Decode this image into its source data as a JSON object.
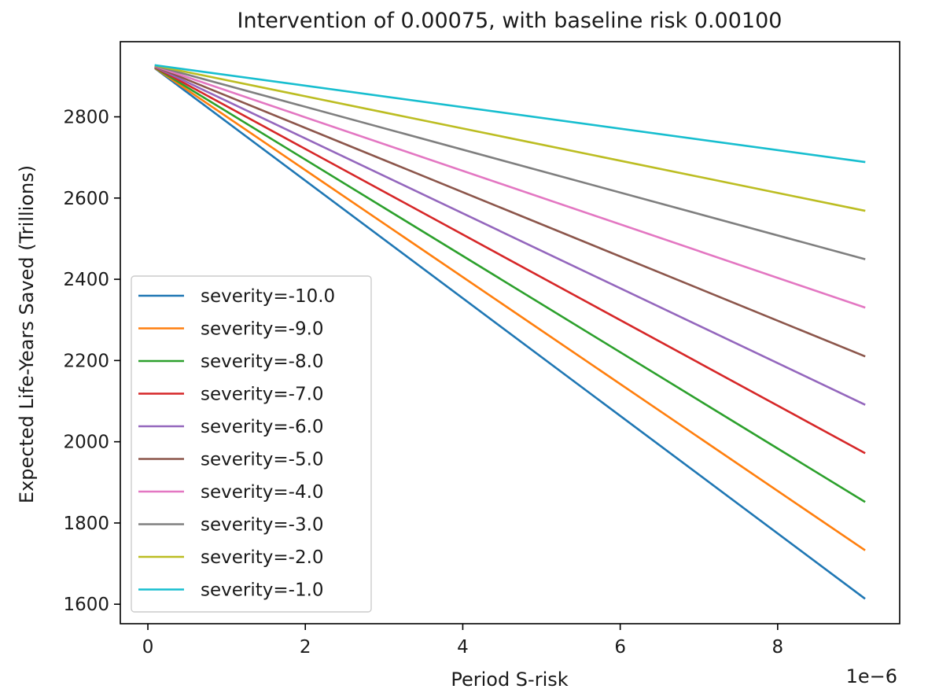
{
  "chart_data": {
    "type": "line",
    "title": "Intervention of 0.00075, with baseline risk 0.00100",
    "xlabel": "Period S-risk",
    "ylabel": "Expected Life-Years Saved (Trillions)",
    "x_offset_label": "1e−6",
    "xlim": [
      -3.5e-07,
      9.55e-06
    ],
    "ylim": [
      1552,
      2985
    ],
    "x_ticks": [
      0,
      2e-06,
      4e-06,
      6e-06,
      8e-06
    ],
    "x_tick_labels": [
      "0",
      "2",
      "4",
      "6",
      "8"
    ],
    "y_ticks": [
      1600,
      1800,
      2000,
      2200,
      2400,
      2600,
      2800
    ],
    "y_tick_labels": [
      "1600",
      "1800",
      "2000",
      "2200",
      "2400",
      "2600",
      "2800"
    ],
    "grid": false,
    "legend_position": "lower-left",
    "x": [
      1e-07,
      9.1e-06
    ],
    "series": [
      {
        "name": "severity=-10.0",
        "color": "#1f77b4",
        "values": [
          2918,
          1615
        ]
      },
      {
        "name": "severity=-9.0",
        "color": "#ff7f0e",
        "values": [
          2919,
          1734
        ]
      },
      {
        "name": "severity=-8.0",
        "color": "#2ca02c",
        "values": [
          2920,
          1853
        ]
      },
      {
        "name": "severity=-7.0",
        "color": "#d62728",
        "values": [
          2921,
          1973
        ]
      },
      {
        "name": "severity=-6.0",
        "color": "#9467bd",
        "values": [
          2922,
          2092
        ]
      },
      {
        "name": "severity=-5.0",
        "color": "#8c564b",
        "values": [
          2923,
          2211
        ]
      },
      {
        "name": "severity=-4.0",
        "color": "#e377c2",
        "values": [
          2924,
          2331
        ]
      },
      {
        "name": "severity=-3.0",
        "color": "#7f7f7f",
        "values": [
          2925,
          2450
        ]
      },
      {
        "name": "severity=-2.0",
        "color": "#bcbd22",
        "values": [
          2926,
          2569
        ]
      },
      {
        "name": "severity=-1.0",
        "color": "#17becf",
        "values": [
          2927,
          2689
        ]
      }
    ]
  }
}
